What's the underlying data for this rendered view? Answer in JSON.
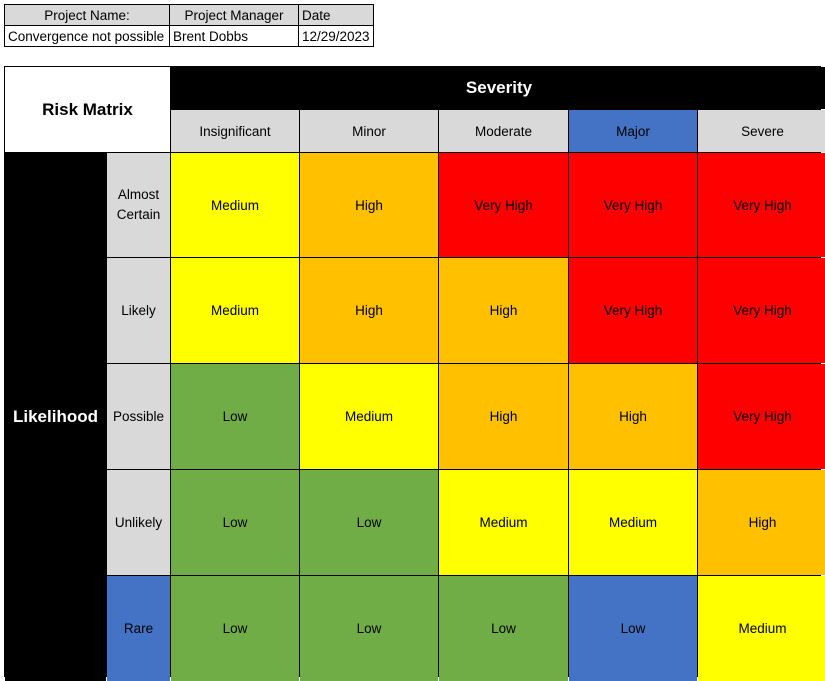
{
  "project_info": {
    "headers": {
      "name": "Project Name:",
      "manager": "Project Manager",
      "date": "Date"
    },
    "values": {
      "name": "Convergence not possible",
      "manager": "Brent Dobbs",
      "date": "12/29/2023"
    }
  },
  "matrix": {
    "title": "Risk Matrix",
    "severity_title": "Severity",
    "likelihood_title": "Likelihood",
    "severity_levels": [
      "Insignificant",
      "Minor",
      "Moderate",
      "Major",
      "Severe"
    ],
    "likelihood_levels": [
      "Almost Certain",
      "Likely",
      "Possible",
      "Unlikely",
      "Rare"
    ],
    "rows": [
      [
        "Medium",
        "High",
        "Very High",
        "Very High",
        "Very High"
      ],
      [
        "Medium",
        "High",
        "High",
        "Very High",
        "Very High"
      ],
      [
        "Low",
        "Medium",
        "High",
        "High",
        "Very High"
      ],
      [
        "Low",
        "Low",
        "Medium",
        "Medium",
        "High"
      ],
      [
        "Low",
        "Low",
        "Low",
        "Low",
        "Medium"
      ]
    ],
    "colors": {
      "low": "#70ad47",
      "medium": "#ffff00",
      "high": "#ffc000",
      "very_high": "#ff0000",
      "header_gray": "#d9d9d9",
      "highlight_blue": "#4472c4"
    }
  }
}
